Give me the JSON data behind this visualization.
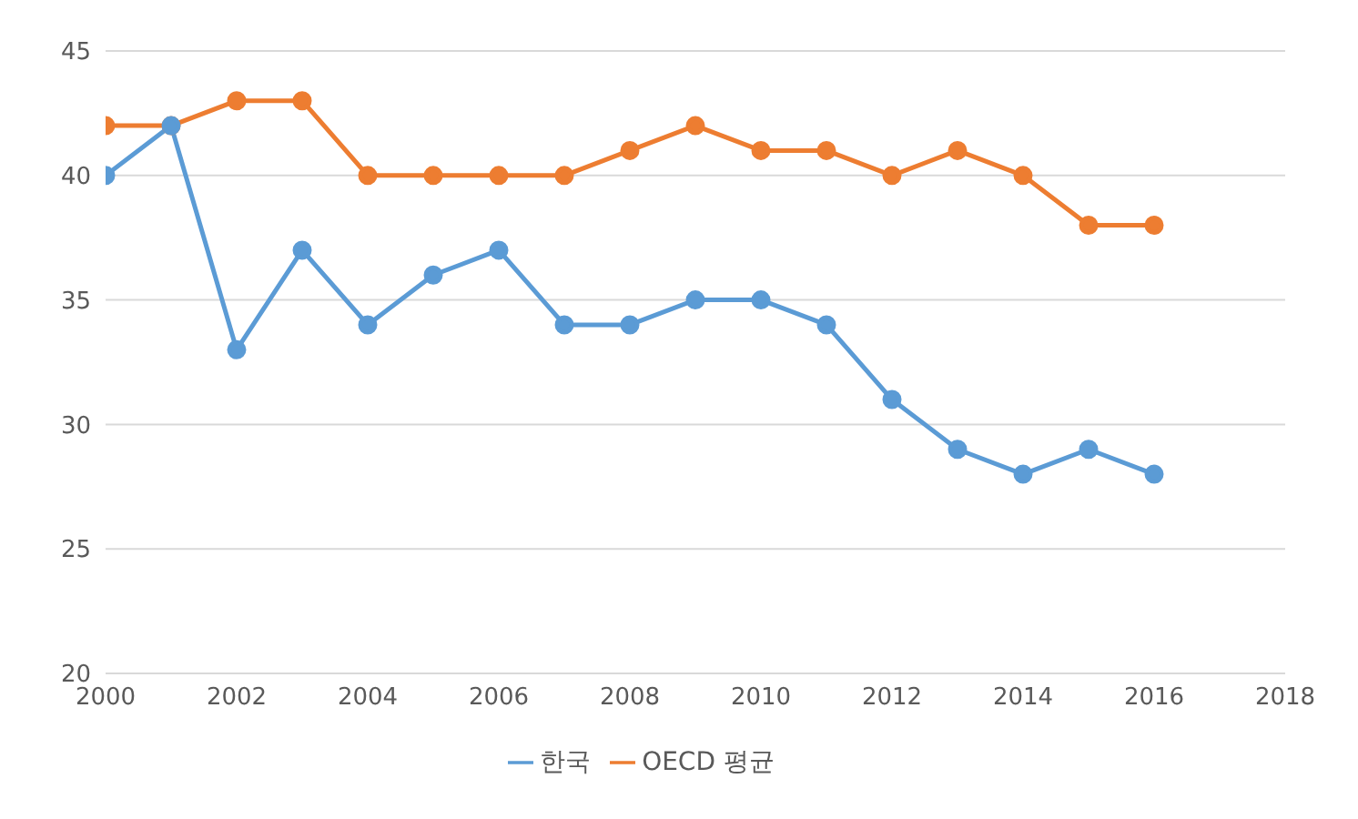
{
  "chart_data": {
    "type": "line",
    "x": [
      2000,
      2001,
      2002,
      2003,
      2004,
      2005,
      2006,
      2007,
      2008,
      2009,
      2010,
      2011,
      2012,
      2013,
      2014,
      2015,
      2016
    ],
    "series": [
      {
        "name": "한국",
        "color": "#5b9bd5",
        "values": [
          40,
          42,
          33,
          37,
          34,
          36,
          37,
          34,
          34,
          35,
          35,
          34,
          31,
          29,
          28,
          29,
          28
        ]
      },
      {
        "name": "OECD 평균",
        "color": "#ed7d31",
        "values": [
          42,
          42,
          43,
          43,
          40,
          40,
          40,
          40,
          41,
          42,
          41,
          41,
          40,
          41,
          40,
          38,
          38
        ]
      }
    ],
    "xlim": [
      2000,
      2018
    ],
    "xticks": [
      2000,
      2002,
      2004,
      2006,
      2008,
      2010,
      2012,
      2014,
      2016,
      2018
    ],
    "ylim": [
      20,
      45
    ],
    "yticks": [
      20,
      25,
      30,
      35,
      40,
      45
    ],
    "grid": "y",
    "legend": "bottom",
    "marker": "circle",
    "line_style": "solid"
  }
}
